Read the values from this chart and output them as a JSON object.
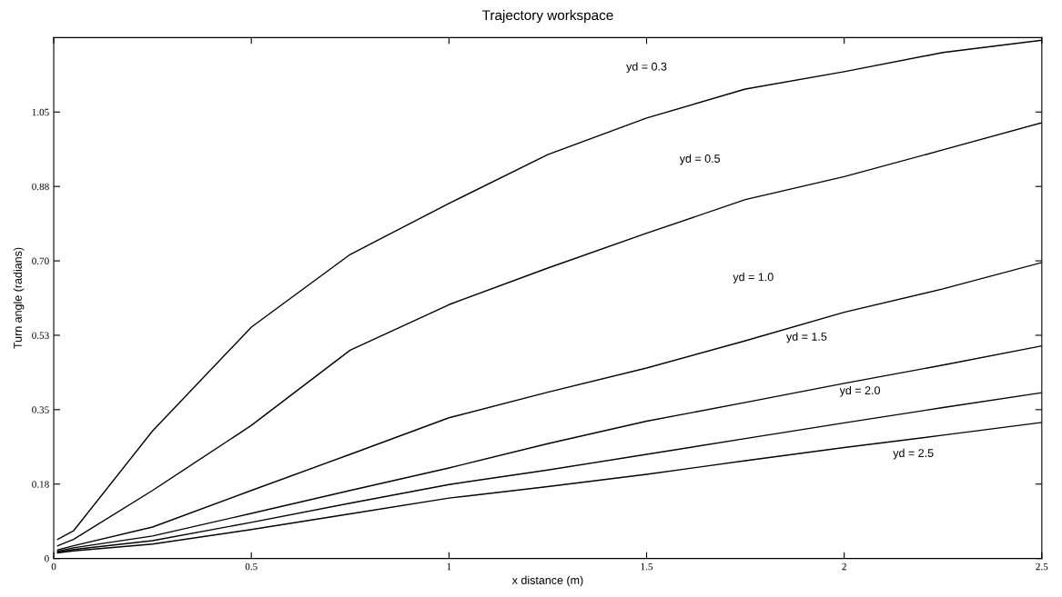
{
  "chart_data": {
    "type": "line",
    "title": "Trajectory workspace",
    "xlabel": "x distance (m)",
    "ylabel": "Turn angle (radians)",
    "x": [
      0.01,
      0.05,
      0.25,
      0.5,
      0.75,
      1.0,
      1.25,
      1.5,
      1.75,
      2.0,
      2.25,
      2.5
    ],
    "series": [
      {
        "color": "#000000",
        "values": [
          0.045,
          0.065,
          0.3,
          0.544,
          0.715,
          0.835,
          0.95,
          1.036,
          1.104,
          1.145,
          1.19,
          1.219
        ]
      },
      {
        "color": "#000000",
        "values": [
          0.03,
          0.045,
          0.16,
          0.313,
          0.49,
          0.597,
          0.683,
          0.765,
          0.844,
          0.898,
          0.961,
          1.025
        ]
      },
      {
        "color": "#000000",
        "values": [
          0.02,
          0.03,
          0.074,
          0.16,
          0.245,
          0.331,
          0.391,
          0.448,
          0.512,
          0.579,
          0.634,
          0.696
        ]
      },
      {
        "color": "#000000",
        "values": [
          0.017,
          0.025,
          0.053,
          0.106,
          0.16,
          0.213,
          0.27,
          0.323,
          0.367,
          0.412,
          0.455,
          0.5
        ]
      },
      {
        "color": "#000000",
        "values": [
          0.015,
          0.021,
          0.042,
          0.085,
          0.13,
          0.174,
          0.208,
          0.245,
          0.282,
          0.319,
          0.355,
          0.39
        ]
      },
      {
        "color": "#000000",
        "values": [
          0.013,
          0.018,
          0.034,
          0.068,
          0.105,
          0.142,
          0.169,
          0.198,
          0.23,
          0.261,
          0.29,
          0.32
        ]
      }
    ],
    "annotations": [
      "yd = 0.3",
      "yd = 0.5",
      "yd = 1.0",
      "yd = 1.5",
      "yd = 2.0",
      "yd = 2.5"
    ],
    "xlim": [
      0,
      2.5
    ],
    "xticks": [
      0,
      0.5,
      1,
      1.5,
      2,
      2.5
    ],
    "ylim": [
      0,
      1.225
    ],
    "yticks": [
      0,
      {
        "value": 0.175,
        "label": "0.18"
      },
      0.35,
      {
        "value": 0.525,
        "label": "0.53"
      },
      {
        "value": 0.7,
        "label": "0.70"
      },
      {
        "value": 0.875,
        "label": "0.88"
      },
      1.05
    ],
    "grid": false,
    "legend": false,
    "marker": "none",
    "line_style": "solid"
  }
}
